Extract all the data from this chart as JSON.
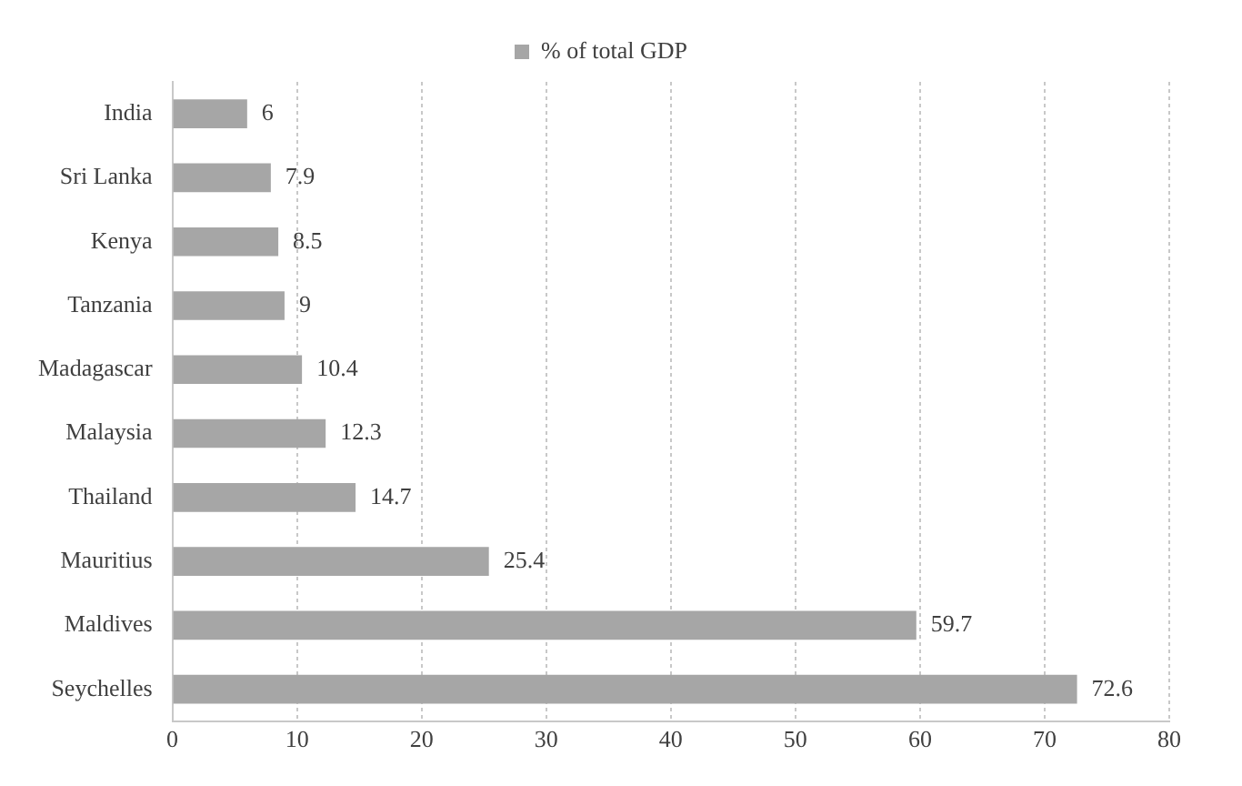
{
  "chart_data": {
    "type": "bar",
    "orientation": "horizontal",
    "categories": [
      "India",
      "Sri Lanka",
      "Kenya",
      "Tanzania",
      "Madagascar",
      "Malaysia",
      "Thailand",
      "Mauritius",
      "Maldives",
      "Seychelles"
    ],
    "series": [
      {
        "name": "% of total GDP",
        "color": "#a6a6a6",
        "values": [
          6,
          7.9,
          8.5,
          9,
          10.4,
          12.3,
          14.7,
          25.4,
          59.7,
          72.6
        ]
      }
    ],
    "xlim": [
      0,
      80
    ],
    "xticks": [
      0,
      10,
      20,
      30,
      40,
      50,
      60,
      70,
      80
    ],
    "grid": "x",
    "legend": "top",
    "data_labels": true
  }
}
